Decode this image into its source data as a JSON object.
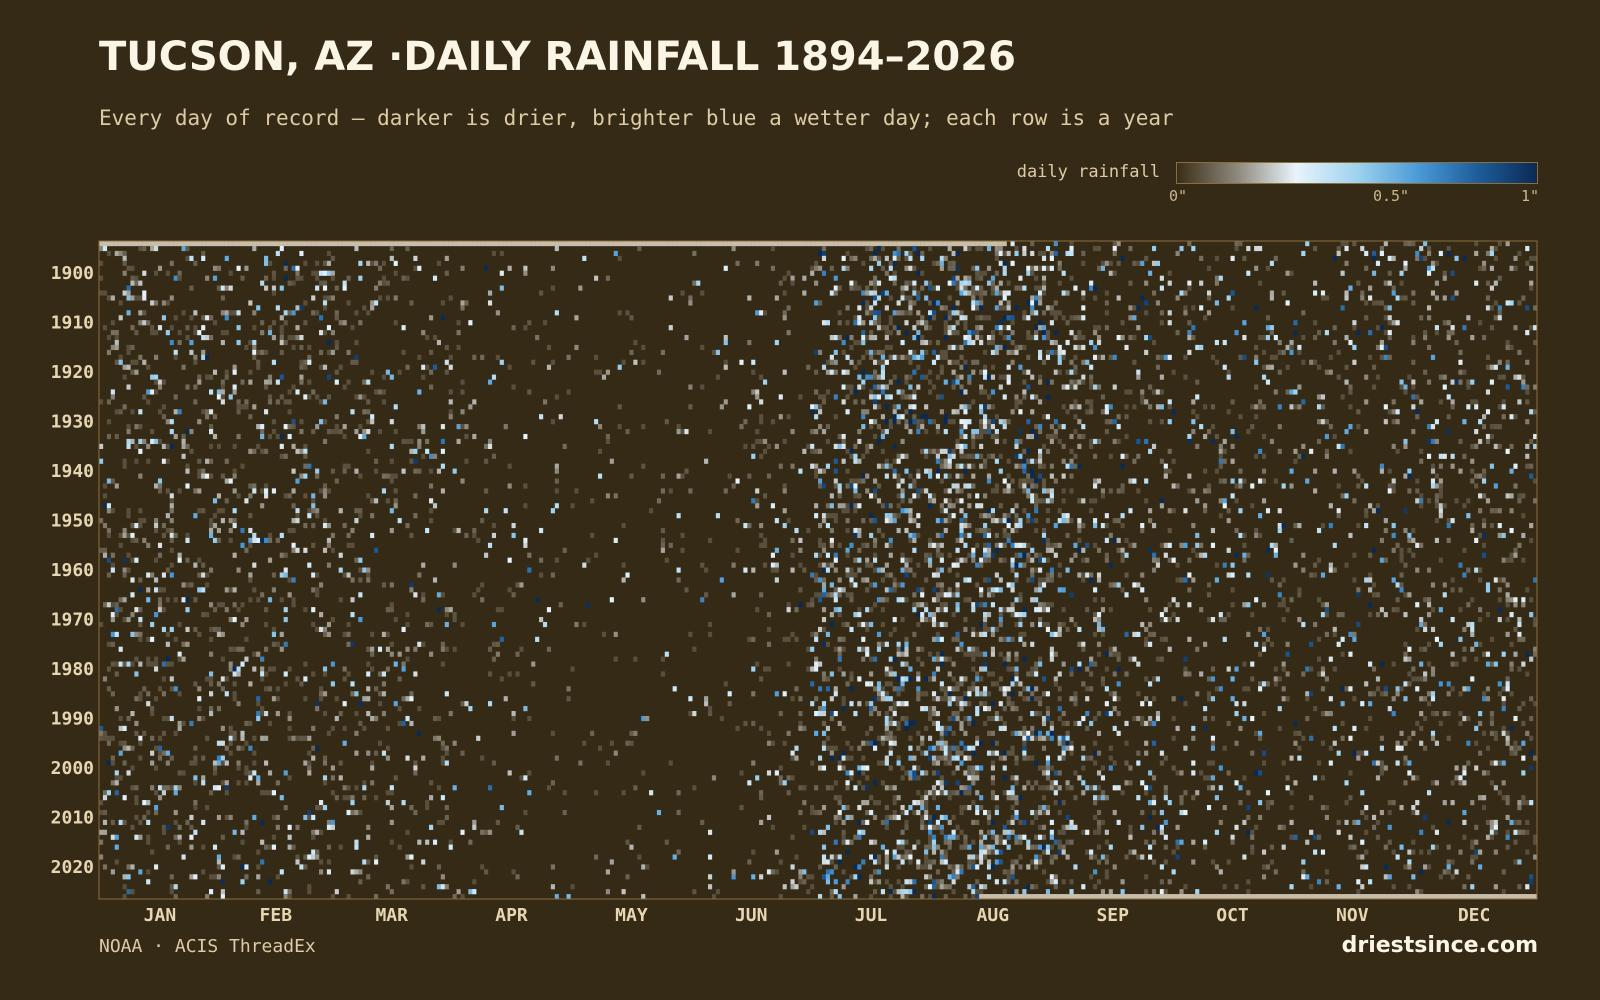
{
  "header": {
    "title": "TUCSON, AZ ·DAILY RAINFALL 1894–2026",
    "subtitle": "Every day of record — darker is drier, brighter blue a wetter day; each row is a year"
  },
  "legend": {
    "label": "daily rainfall",
    "ticks": [
      "0\"",
      "0.5\"",
      "1\""
    ],
    "tick_values": [
      0,
      0.5,
      1
    ],
    "colors": [
      "#3a2e18",
      "#8f8a7e",
      "#e8f4fb",
      "#9fd2ee",
      "#4a9ad8",
      "#1f5e9c",
      "#0a2a55"
    ]
  },
  "footer": {
    "source": "NOAA · ACIS ThreadEx",
    "brand": "driestsince.com"
  },
  "colors": {
    "background": "#352a15",
    "frame": "#8a6f3a",
    "missing": "#c8beac"
  },
  "chart_data": {
    "type": "heatmap",
    "title": "TUCSON, AZ ·DAILY RAINFALL 1894–2026",
    "x_axis": "day of year",
    "y_axis": "year",
    "year_range": [
      1894,
      2026
    ],
    "y_ticks": [
      1900,
      1910,
      1920,
      1930,
      1940,
      1950,
      1960,
      1970,
      1980,
      1990,
      2000,
      2010,
      2020
    ],
    "months": [
      "JAN",
      "FEB",
      "MAR",
      "APR",
      "MAY",
      "JUN",
      "JUL",
      "AUG",
      "SEP",
      "OCT",
      "NOV",
      "DEC"
    ],
    "color_scale": {
      "min": 0,
      "max": 1,
      "unit": "in"
    },
    "monthly_rain_day_frequency": [
      0.14,
      0.14,
      0.11,
      0.05,
      0.025,
      0.04,
      0.26,
      0.3,
      0.15,
      0.1,
      0.11,
      0.14
    ],
    "monthly_mean_wet_day_amount": [
      0.25,
      0.25,
      0.22,
      0.2,
      0.2,
      0.22,
      0.35,
      0.35,
      0.3,
      0.3,
      0.28,
      0.26
    ],
    "missing_data": [
      {
        "year": 1894,
        "from_day": 1,
        "to_day": 231
      },
      {
        "year": 2026,
        "from_day": 225,
        "to_day": 366
      }
    ],
    "grid": false
  }
}
